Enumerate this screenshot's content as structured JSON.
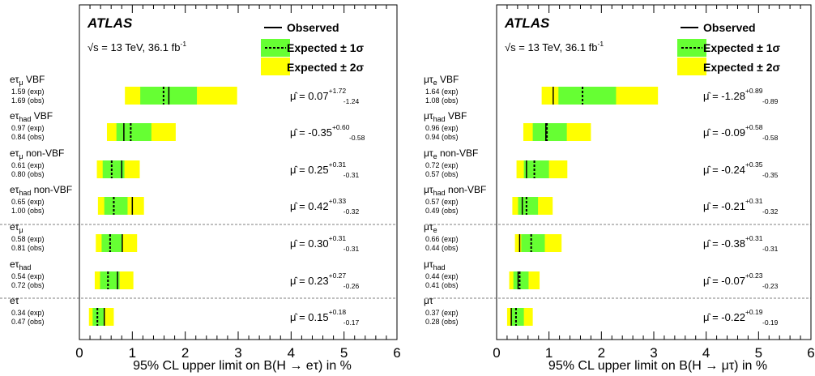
{
  "chart_data": [
    {
      "type": "bar",
      "brand": "ATLAS",
      "energy_text": "= 13 TeV, 36.1 fb",
      "energy_sup": "-1",
      "legend": {
        "observed": "Observed",
        "expected1": "Expected ± 1σ",
        "expected2": "Expected ± 2σ"
      },
      "colors": {
        "band1": "#66ff33",
        "band2": "#ffff00"
      },
      "xlim": [
        0,
        6
      ],
      "xticks": [
        "0",
        "1",
        "2",
        "3",
        "4",
        "5",
        "6"
      ],
      "xlabel": "95% CL upper limit on B(H → eτ) in %",
      "categories": [
        {
          "main": "eτ",
          "sub": "μ",
          "suffix": " VBF",
          "exp_text": "1.59 (exp)",
          "obs_text": "1.69 (obs)",
          "expected": 1.59,
          "observed": 1.69,
          "band1": [
            1.15,
            2.22
          ],
          "band2": [
            0.86,
            2.98
          ],
          "mu_hat": "μ̂ = 0.07",
          "mu_up": "+1.72",
          "mu_down": "-1.24"
        },
        {
          "main": "eτ",
          "sub": "had",
          "suffix": " VBF",
          "exp_text": "0.97 (exp)",
          "obs_text": "0.84 (obs)",
          "expected": 0.97,
          "observed": 0.84,
          "band1": [
            0.7,
            1.36
          ],
          "band2": [
            0.52,
            1.82
          ],
          "mu_hat": "μ̂ = -0.35",
          "mu_up": "+0.60",
          "mu_down": "-0.58"
        },
        {
          "main": "eτ",
          "sub": "μ",
          "suffix": " non-VBF",
          "exp_text": "0.61 (exp)",
          "obs_text": "0.80 (obs)",
          "expected": 0.61,
          "observed": 0.8,
          "band1": [
            0.44,
            0.85
          ],
          "band2": [
            0.33,
            1.14
          ],
          "mu_hat": "μ̂ = 0.25",
          "mu_up": "+0.31",
          "mu_down": "-0.31"
        },
        {
          "main": "eτ",
          "sub": "had",
          "suffix": " non-VBF",
          "exp_text": "0.65 (exp)",
          "obs_text": "1.00 (obs)",
          "expected": 0.65,
          "observed": 1.0,
          "band1": [
            0.47,
            0.91
          ],
          "band2": [
            0.35,
            1.22
          ],
          "mu_hat": "μ̂ = 0.42",
          "mu_up": "+0.33",
          "mu_down": "-0.32"
        },
        {
          "main": "eτ",
          "sub": "μ",
          "suffix": "",
          "exp_text": "0.58 (exp)",
          "obs_text": "0.81 (obs)",
          "expected": 0.58,
          "observed": 0.81,
          "band1": [
            0.42,
            0.81
          ],
          "band2": [
            0.31,
            1.09
          ],
          "mu_hat": "μ̂ = 0.30",
          "mu_up": "+0.31",
          "mu_down": "-0.31"
        },
        {
          "main": "eτ",
          "sub": "had",
          "suffix": "",
          "exp_text": "0.54 (exp)",
          "obs_text": "0.72 (obs)",
          "expected": 0.54,
          "observed": 0.72,
          "band1": [
            0.39,
            0.76
          ],
          "band2": [
            0.29,
            1.02
          ],
          "mu_hat": "μ̂ = 0.23",
          "mu_up": "+0.27",
          "mu_down": "-0.26"
        },
        {
          "main": "eτ",
          "sub": "",
          "suffix": "",
          "exp_text": "0.34 (exp)",
          "obs_text": "0.47 (obs)",
          "expected": 0.34,
          "observed": 0.47,
          "band1": [
            0.25,
            0.48
          ],
          "band2": [
            0.18,
            0.65
          ],
          "mu_hat": "μ̂ = 0.15",
          "mu_up": "+0.18",
          "mu_down": "-0.17"
        }
      ]
    },
    {
      "type": "bar",
      "brand": "ATLAS",
      "energy_text": "= 13 TeV, 36.1 fb",
      "energy_sup": "-1",
      "legend": {
        "observed": "Observed",
        "expected1": "Expected ± 1σ",
        "expected2": "Expected ± 2σ"
      },
      "colors": {
        "band1": "#66ff33",
        "band2": "#ffff00"
      },
      "xlim": [
        0,
        6
      ],
      "xticks": [
        "0",
        "1",
        "2",
        "3",
        "4",
        "5",
        "6"
      ],
      "xlabel": "95% CL upper limit on B(H → μτ) in %",
      "categories": [
        {
          "main": "μτ",
          "sub": "e",
          "suffix": " VBF",
          "exp_text": "1.64 (exp)",
          "obs_text": "1.08 (obs)",
          "expected": 1.64,
          "observed": 1.08,
          "band1": [
            1.18,
            2.28
          ],
          "band2": [
            0.86,
            3.08
          ],
          "mu_hat": "μ̂ = -1.28",
          "mu_up": "+0.89",
          "mu_down": "-0.89"
        },
        {
          "main": "μτ",
          "sub": "had",
          "suffix": " VBF",
          "exp_text": "0.96 (exp)",
          "obs_text": "0.94 (obs)",
          "expected": 0.96,
          "observed": 0.94,
          "band1": [
            0.69,
            1.34
          ],
          "band2": [
            0.51,
            1.8
          ],
          "mu_hat": "μ̂ = -0.09",
          "mu_up": "+0.58",
          "mu_down": "-0.58"
        },
        {
          "main": "μτ",
          "sub": "e",
          "suffix": " non-VBF",
          "exp_text": "0.72 (exp)",
          "obs_text": "0.57 (obs)",
          "expected": 0.72,
          "observed": 0.57,
          "band1": [
            0.52,
            1.0
          ],
          "band2": [
            0.38,
            1.35
          ],
          "mu_hat": "μ̂ = -0.24",
          "mu_up": "+0.35",
          "mu_down": "-0.35"
        },
        {
          "main": "μτ",
          "sub": "had",
          "suffix": " non-VBF",
          "exp_text": "0.57 (exp)",
          "obs_text": "0.49 (obs)",
          "expected": 0.57,
          "observed": 0.49,
          "band1": [
            0.41,
            0.79
          ],
          "band2": [
            0.3,
            1.07
          ],
          "mu_hat": "μ̂ = -0.21",
          "mu_up": "+0.31",
          "mu_down": "-0.32"
        },
        {
          "main": "μτ",
          "sub": "e",
          "suffix": "",
          "exp_text": "0.66 (exp)",
          "obs_text": "0.44 (obs)",
          "expected": 0.66,
          "observed": 0.44,
          "band1": [
            0.47,
            0.92
          ],
          "band2": [
            0.35,
            1.24
          ],
          "mu_hat": "μ̂ = -0.38",
          "mu_up": "+0.31",
          "mu_down": "-0.31"
        },
        {
          "main": "μτ",
          "sub": "had",
          "suffix": "",
          "exp_text": "0.44 (exp)",
          "obs_text": "0.41 (obs)",
          "expected": 0.44,
          "observed": 0.41,
          "band1": [
            0.32,
            0.61
          ],
          "band2": [
            0.24,
            0.82
          ],
          "mu_hat": "μ̂ = -0.07",
          "mu_up": "+0.23",
          "mu_down": "-0.23"
        },
        {
          "main": "μτ",
          "sub": "",
          "suffix": "",
          "exp_text": "0.37 (exp)",
          "obs_text": "0.28 (obs)",
          "expected": 0.37,
          "observed": 0.28,
          "band1": [
            0.27,
            0.52
          ],
          "band2": [
            0.2,
            0.69
          ],
          "mu_hat": "μ̂ = -0.22",
          "mu_up": "+0.19",
          "mu_down": "-0.19"
        }
      ]
    }
  ]
}
